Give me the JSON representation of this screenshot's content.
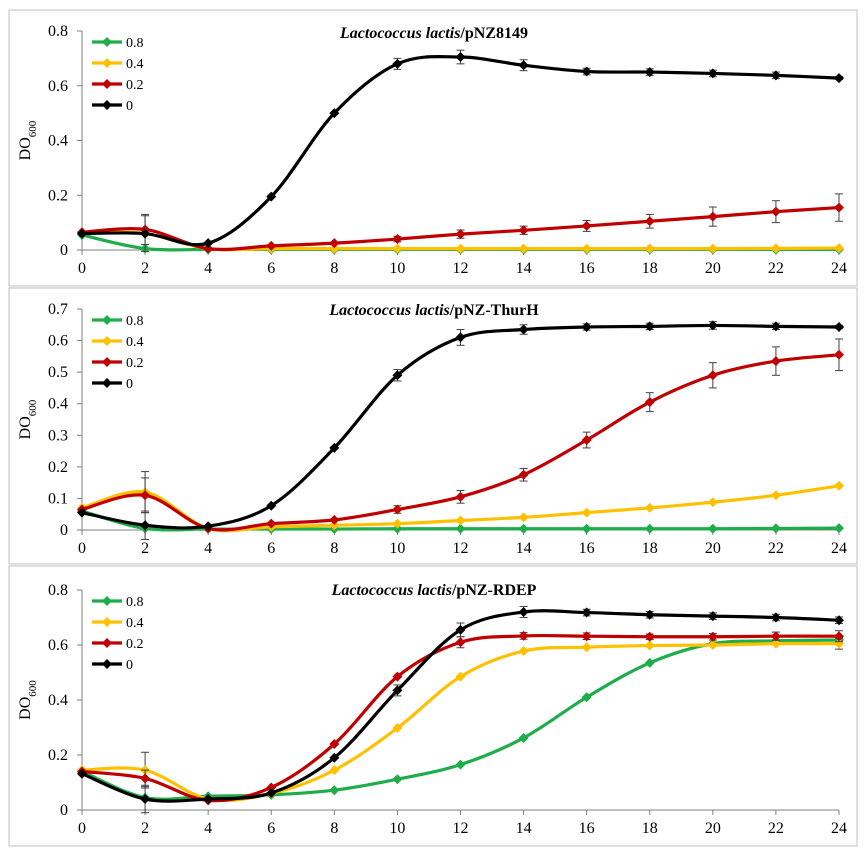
{
  "colors": {
    "0.8": "#1fad4b",
    "0.4": "#ffc000",
    "0.2": "#c00000",
    "0": "#000000"
  },
  "chart_data": [
    {
      "type": "line",
      "title_italic": "Lactococcus lactis",
      "title_rest": "/pNZ8149",
      "ylabel_main": "DO",
      "ylabel_sub": "600",
      "xlabel": "",
      "x": [
        0,
        2,
        4,
        6,
        8,
        10,
        12,
        14,
        16,
        18,
        20,
        22,
        24
      ],
      "xticks": [
        "0",
        "2",
        "4",
        "6",
        "8",
        "10",
        "12",
        "14",
        "16",
        "18",
        "20",
        "22",
        "24"
      ],
      "ylim": [
        0,
        0.8
      ],
      "yticks": [
        "0",
        "0.2",
        "0.4",
        "0.6",
        "0.8"
      ],
      "series": [
        {
          "name": "0.8",
          "values": [
            0.055,
            0.005,
            0.002,
            0.002,
            0.002,
            0.002,
            0.002,
            0.002,
            0.002,
            0.002,
            0.002,
            0.002,
            0.002
          ],
          "errors": [
            0,
            0,
            0,
            0,
            0,
            0,
            0,
            0,
            0,
            0,
            0,
            0,
            0
          ]
        },
        {
          "name": "0.4",
          "values": [
            0.065,
            0.06,
            0.005,
            0.005,
            0.005,
            0.005,
            0.005,
            0.005,
            0.005,
            0.005,
            0.005,
            0.006,
            0.007
          ],
          "errors": [
            0,
            0,
            0,
            0,
            0,
            0,
            0,
            0,
            0,
            0,
            0,
            0,
            0
          ]
        },
        {
          "name": "0.2",
          "values": [
            0.065,
            0.075,
            0.005,
            0.015,
            0.025,
            0.04,
            0.058,
            0.072,
            0.088,
            0.105,
            0.122,
            0.14,
            0.155
          ],
          "errors": [
            0,
            0.055,
            0,
            0,
            0,
            0.01,
            0.015,
            0.015,
            0.02,
            0.025,
            0.035,
            0.04,
            0.05
          ]
        },
        {
          "name": "0",
          "values": [
            0.06,
            0.06,
            0.025,
            0.195,
            0.5,
            0.68,
            0.705,
            0.675,
            0.652,
            0.65,
            0.645,
            0.638,
            0.628
          ],
          "errors": [
            0,
            0.065,
            0,
            0,
            0,
            0.02,
            0.025,
            0.02,
            0.012,
            0.012,
            0.012,
            0.012,
            0.005
          ]
        }
      ]
    },
    {
      "type": "line",
      "title_italic": "Lactococcus lactis",
      "title_rest": "/pNZ-ThurH",
      "ylabel_main": "DO",
      "ylabel_sub": "600",
      "xlabel": "",
      "x": [
        0,
        2,
        4,
        6,
        8,
        10,
        12,
        14,
        16,
        18,
        20,
        22,
        24
      ],
      "xticks": [
        "0",
        "2",
        "4",
        "6",
        "8",
        "10",
        "12",
        "14",
        "16",
        "18",
        "20",
        "22",
        "24"
      ],
      "ylim": [
        0,
        0.7
      ],
      "yticks": [
        "0",
        "0.1",
        "0.2",
        "0.3",
        "0.4",
        "0.5",
        "0.6",
        "0.7"
      ],
      "series": [
        {
          "name": "0.8",
          "values": [
            0.06,
            0.005,
            0.003,
            0.003,
            0.003,
            0.004,
            0.004,
            0.004,
            0.004,
            0.004,
            0.004,
            0.005,
            0.006
          ],
          "errors": [
            0,
            0,
            0,
            0,
            0,
            0,
            0,
            0,
            0,
            0,
            0,
            0,
            0
          ]
        },
        {
          "name": "0.4",
          "values": [
            0.07,
            0.12,
            0.005,
            0.01,
            0.015,
            0.02,
            0.03,
            0.04,
            0.055,
            0.07,
            0.088,
            0.11,
            0.14
          ],
          "errors": [
            0,
            0.065,
            0,
            0,
            0,
            0,
            0,
            0,
            0,
            0,
            0,
            0,
            0
          ]
        },
        {
          "name": "0.2",
          "values": [
            0.065,
            0.11,
            0.005,
            0.02,
            0.032,
            0.065,
            0.105,
            0.175,
            0.285,
            0.405,
            0.49,
            0.535,
            0.555
          ],
          "errors": [
            0,
            0.055,
            0,
            0,
            0,
            0.012,
            0.02,
            0.02,
            0.025,
            0.03,
            0.04,
            0.045,
            0.05
          ]
        },
        {
          "name": "0",
          "values": [
            0.055,
            0.015,
            0.012,
            0.077,
            0.26,
            0.49,
            0.61,
            0.635,
            0.643,
            0.645,
            0.648,
            0.645,
            0.643
          ],
          "errors": [
            0,
            0.045,
            0,
            0,
            0,
            0.018,
            0.025,
            0.015,
            0.01,
            0.01,
            0.012,
            0.01,
            0.005
          ]
        }
      ]
    },
    {
      "type": "line",
      "title_italic": "Lactococcus lactis",
      "title_rest": "/pNZ-RDEP",
      "ylabel_main": "DO",
      "ylabel_sub": "600",
      "xlabel": "",
      "x": [
        0,
        2,
        4,
        6,
        8,
        10,
        12,
        14,
        16,
        18,
        20,
        22,
        24
      ],
      "xticks": [
        "0",
        "2",
        "4",
        "6",
        "8",
        "10",
        "12",
        "14",
        "16",
        "18",
        "20",
        "22",
        "24"
      ],
      "ylim": [
        0,
        0.8
      ],
      "yticks": [
        "0",
        "0.2",
        "0.4",
        "0.6",
        "0.8"
      ],
      "series": [
        {
          "name": "0.8",
          "values": [
            0.14,
            0.045,
            0.05,
            0.055,
            0.072,
            0.112,
            0.165,
            0.262,
            0.41,
            0.535,
            0.605,
            0.615,
            0.618
          ],
          "errors": [
            0,
            0,
            0,
            0,
            0,
            0,
            0,
            0,
            0,
            0,
            0,
            0,
            0
          ]
        },
        {
          "name": "0.4",
          "values": [
            0.145,
            0.145,
            0.04,
            0.06,
            0.145,
            0.298,
            0.485,
            0.578,
            0.592,
            0.598,
            0.6,
            0.605,
            0.605
          ],
          "errors": [
            0,
            0.065,
            0,
            0,
            0,
            0,
            0,
            0,
            0,
            0,
            0,
            0,
            0.02
          ]
        },
        {
          "name": "0.2",
          "values": [
            0.14,
            0.115,
            0.035,
            0.082,
            0.24,
            0.485,
            0.61,
            0.633,
            0.632,
            0.63,
            0.63,
            0.632,
            0.632
          ],
          "errors": [
            0,
            0.03,
            0,
            0,
            0,
            0,
            0.02,
            0.012,
            0.012,
            0.01,
            0.012,
            0.015,
            0.02
          ]
        },
        {
          "name": "0",
          "values": [
            0.132,
            0.04,
            0.04,
            0.062,
            0.19,
            0.435,
            0.655,
            0.72,
            0.718,
            0.71,
            0.705,
            0.7,
            0.69
          ],
          "errors": [
            0,
            0.05,
            0,
            0,
            0,
            0.02,
            0.025,
            0.02,
            0.012,
            0.012,
            0.012,
            0.012,
            0.012
          ]
        }
      ]
    }
  ]
}
